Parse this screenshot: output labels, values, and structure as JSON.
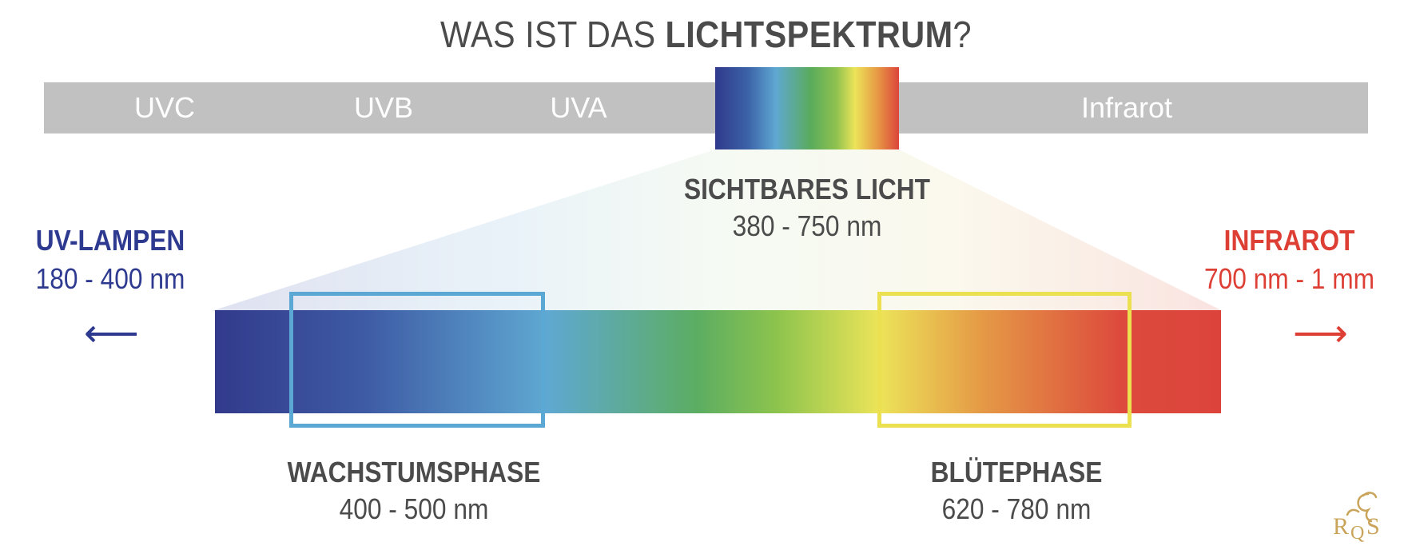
{
  "title": {
    "prefix": "WAS IST DAS ",
    "bold": "LICHTSPEKTRUM",
    "suffix": "?"
  },
  "spectrum_bands": {
    "uvc": "UVC",
    "uvb": "UVB",
    "uva": "UVA",
    "infrared": "Infrarot"
  },
  "visible_light": {
    "heading": "SICHTBARES LICHT",
    "range": "380 - 750 nm"
  },
  "uv_lamps": {
    "heading": "UV-LAMPEN",
    "range": "180 - 400 nm",
    "color": "#2e3a8f",
    "arrow": "⟵"
  },
  "infrared": {
    "heading": "INFRAROT",
    "range": "700 nm - 1 mm",
    "color": "#dd3f35",
    "arrow": "⟶"
  },
  "growth_phase": {
    "heading": "WACHSTUMSPHASE",
    "range": "400 - 500 nm",
    "color": "#5ba8d4"
  },
  "bloom_phase": {
    "heading": "BLÜTEPHASE",
    "range": "620 - 780 nm",
    "color": "#ebe04f"
  },
  "logo": {
    "text": "RQS",
    "color": "#c9a45a"
  }
}
